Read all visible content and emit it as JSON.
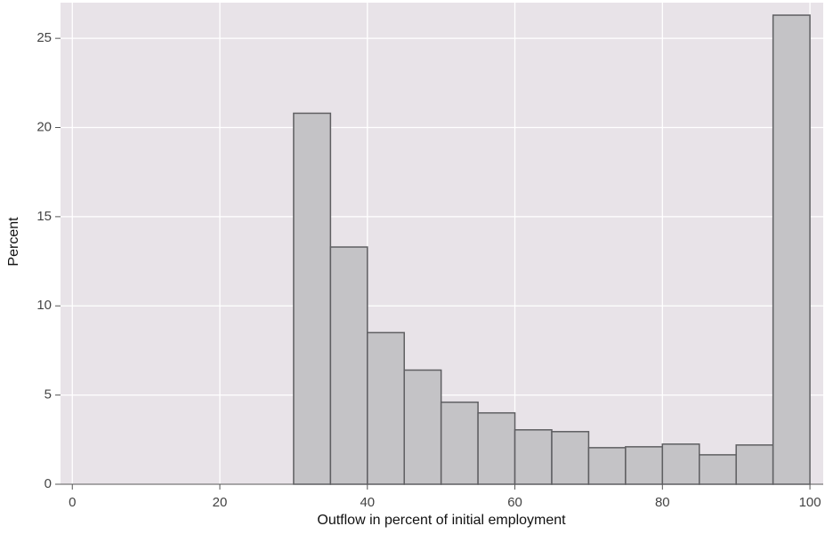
{
  "chart_data": {
    "type": "histogram",
    "xlabel": "Outflow in percent of initial employment",
    "ylabel": "Percent",
    "bins": [
      30,
      35,
      40,
      45,
      50,
      55,
      60,
      65,
      70,
      75,
      80,
      85,
      90,
      95,
      100
    ],
    "values": [
      20.8,
      13.3,
      8.5,
      6.4,
      4.6,
      4.0,
      3.05,
      2.95,
      2.05,
      2.1,
      2.25,
      1.65,
      2.2,
      26.3
    ],
    "color": "#c4c3c6",
    "edgecolor": "#5f5f62",
    "background": "#e8e3e8",
    "grid": true,
    "xlim": [
      -1.6,
      101.8
    ],
    "ylim": [
      0,
      27
    ],
    "xticks": [
      0,
      20,
      40,
      60,
      80,
      100
    ],
    "yticks": [
      0,
      5,
      10,
      15,
      20,
      25
    ]
  }
}
